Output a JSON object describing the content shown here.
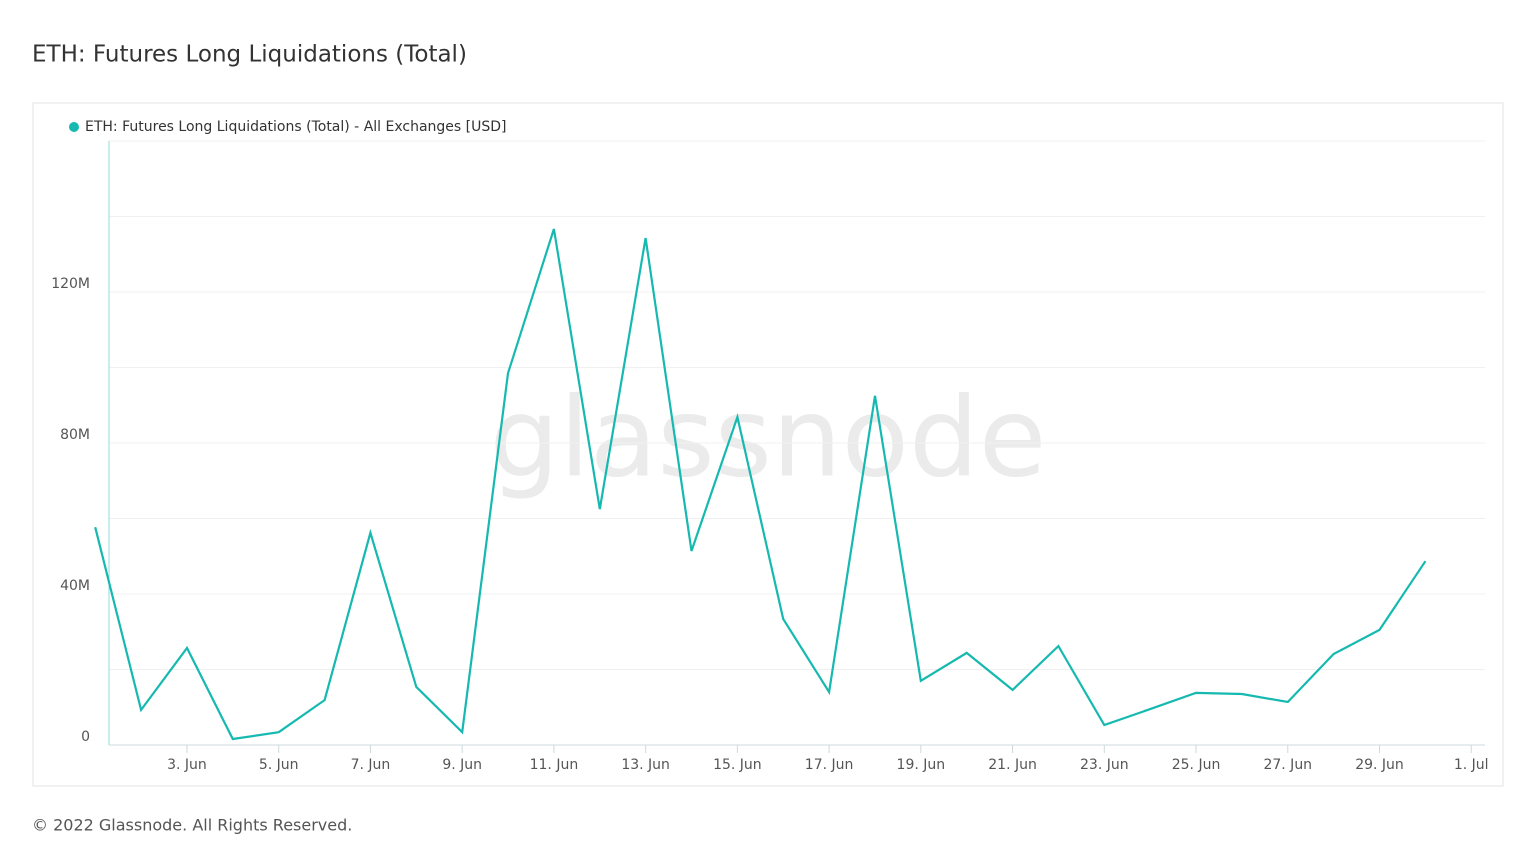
{
  "chart_data": {
    "type": "line",
    "title": "ETH: Futures Long Liquidations (Total)",
    "watermark": "glassnode",
    "footer": "© 2022 Glassnode. All Rights Reserved.",
    "x": [
      1,
      2,
      3,
      4,
      5,
      6,
      7,
      8,
      9,
      10,
      11,
      12,
      13,
      14,
      15,
      16,
      17,
      18,
      19,
      20,
      21,
      22,
      23,
      24,
      25,
      26,
      27,
      28,
      29,
      30
    ],
    "series": [
      {
        "name": "ETH: Futures Long Liquidations (Total) - All Exchanges [USD]",
        "color": "#16b9b0",
        "values": [
          57700000,
          9300000,
          25700000,
          1600000,
          3400000,
          11900000,
          56200000,
          15400000,
          3400000,
          98500000,
          136700000,
          62500000,
          134300000,
          51400000,
          86900000,
          33400000,
          14000000,
          92500000,
          17000000,
          24400000,
          14600000,
          26200000,
          5300000,
          9500000,
          13800000,
          13500000,
          11400000,
          24100000,
          30500000,
          48700000
        ]
      }
    ],
    "xlim": [
      1.3,
      31.3
    ],
    "xticks": [
      {
        "value": 3,
        "label": "3. Jun"
      },
      {
        "value": 5,
        "label": "5. Jun"
      },
      {
        "value": 7,
        "label": "7. Jun"
      },
      {
        "value": 9,
        "label": "9. Jun"
      },
      {
        "value": 11,
        "label": "11. Jun"
      },
      {
        "value": 13,
        "label": "13. Jun"
      },
      {
        "value": 15,
        "label": "15. Jun"
      },
      {
        "value": 17,
        "label": "17. Jun"
      },
      {
        "value": 19,
        "label": "19. Jun"
      },
      {
        "value": 21,
        "label": "21. Jun"
      },
      {
        "value": 23,
        "label": "23. Jun"
      },
      {
        "value": 25,
        "label": "25. Jun"
      },
      {
        "value": 27,
        "label": "27. Jun"
      },
      {
        "value": 29,
        "label": "29. Jun"
      },
      {
        "value": 31,
        "label": "1. Jul"
      }
    ],
    "ylim": [
      0,
      160000000
    ],
    "yticks": [
      0,
      {
        "value": 40000000,
        "label": "40M"
      },
      {
        "value": 80000000,
        "label": "80M"
      },
      {
        "value": 120000000,
        "label": "120M"
      }
    ],
    "minor_yticks": [
      20000000,
      60000000,
      100000000,
      140000000,
      160000000
    ],
    "grid": true
  }
}
